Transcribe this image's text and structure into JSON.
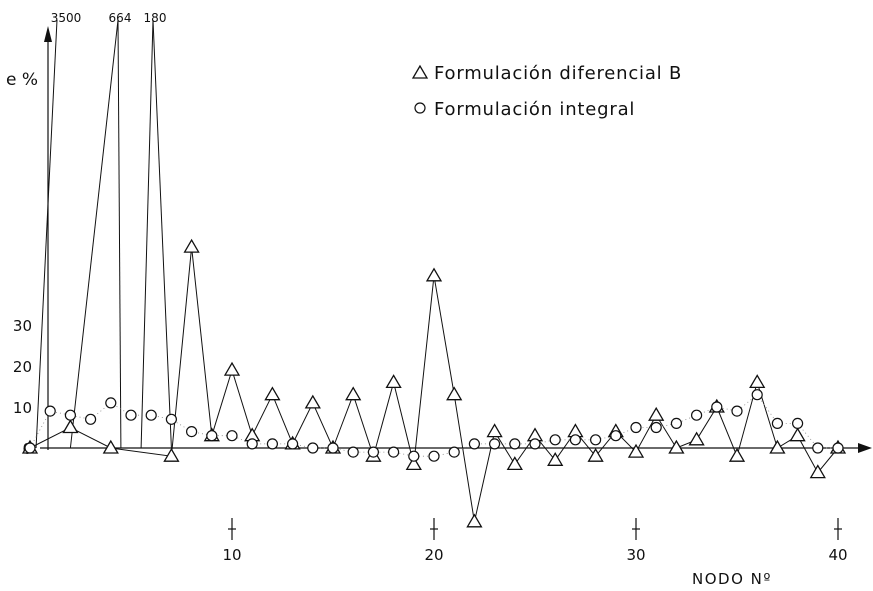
{
  "chart_data": {
    "type": "line",
    "title": "",
    "ylabel": "e %",
    "xlabel": "NODO Nº",
    "ylim": [
      -20,
      100
    ],
    "xlim": [
      0,
      41
    ],
    "grid": false,
    "legend_placement": "top-right",
    "y_ticks": [
      0,
      10,
      20,
      30
    ],
    "x_ticks": [
      10,
      20,
      30,
      40
    ],
    "offscale_labels": [
      "3500",
      "664",
      "180"
    ],
    "offscale_points": [
      {
        "x": 0.3,
        "label": "3500"
      },
      {
        "x": 2,
        "label": "664"
      },
      {
        "x": 4.5,
        "label": "664"
      },
      {
        "x": 5.5,
        "label": "180"
      },
      {
        "x": 7,
        "label": "180"
      }
    ],
    "series": [
      {
        "name": "Formulación diferencial B",
        "marker": "triangle",
        "line": "solid",
        "x": [
          0,
          2,
          4,
          7,
          8,
          9,
          10,
          11,
          12,
          13,
          14,
          15,
          16,
          17,
          18,
          19,
          20,
          21,
          22,
          23,
          24,
          25,
          26,
          27,
          28,
          29,
          30,
          31,
          32,
          33,
          34,
          35,
          36,
          37,
          38,
          39,
          40
        ],
        "values": [
          0,
          5,
          0,
          -2,
          49,
          3,
          19,
          3,
          13,
          1,
          11,
          0,
          13,
          -2,
          16,
          -4,
          42,
          13,
          -18,
          4,
          -4,
          3,
          -3,
          4,
          -2,
          4,
          -1,
          8,
          0,
          2,
          10,
          -2,
          16,
          0,
          3,
          -6,
          0
        ]
      },
      {
        "name": "Formulación integral",
        "marker": "circle",
        "line": "dotted",
        "x": [
          0,
          1,
          2,
          3,
          4,
          5,
          6,
          7,
          8,
          9,
          10,
          11,
          12,
          13,
          14,
          15,
          16,
          17,
          18,
          19,
          20,
          21,
          22,
          23,
          24,
          25,
          26,
          27,
          28,
          29,
          30,
          31,
          32,
          33,
          34,
          35,
          36,
          37,
          38,
          39,
          40
        ],
        "values": [
          0,
          9,
          8,
          7,
          11,
          8,
          8,
          7,
          4,
          3,
          3,
          1,
          1,
          1,
          0,
          0,
          -1,
          -1,
          -1,
          -2,
          -2,
          -1,
          1,
          1,
          1,
          1,
          2,
          2,
          2,
          3,
          5,
          5,
          6,
          8,
          10,
          9,
          13,
          6,
          6,
          0,
          0
        ]
      }
    ]
  }
}
